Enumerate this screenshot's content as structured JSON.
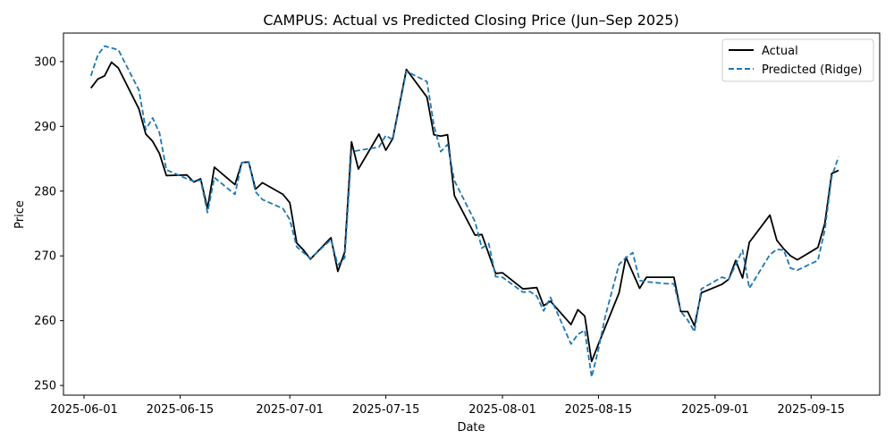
{
  "chart_data": {
    "type": "line",
    "title": "CAMPUS: Actual vs Predicted Closing Price (Jun–Sep 2025)",
    "xlabel": "Date",
    "ylabel": "Price",
    "xlim": [
      "2025-05-29",
      "2025-09-25"
    ],
    "ylim": [
      248.5,
      304.4
    ],
    "x_ticks": [
      "2025-06-01",
      "2025-06-15",
      "2025-07-01",
      "2025-07-15",
      "2025-08-01",
      "2025-08-15",
      "2025-09-01",
      "2025-09-15"
    ],
    "y_ticks": [
      250,
      260,
      270,
      280,
      290,
      300
    ],
    "legend_position": "top-right",
    "grid": false,
    "series": [
      {
        "name": "Actual",
        "color": "#000000",
        "style": "solid",
        "points": [
          [
            "2025-06-02",
            295.9
          ],
          [
            "2025-06-03",
            297.3
          ],
          [
            "2025-06-04",
            297.8
          ],
          [
            "2025-06-05",
            299.9
          ],
          [
            "2025-06-06",
            299.0
          ],
          [
            "2025-06-09",
            292.7
          ],
          [
            "2025-06-10",
            288.8
          ],
          [
            "2025-06-11",
            287.7
          ],
          [
            "2025-06-12",
            285.8
          ],
          [
            "2025-06-13",
            282.4
          ],
          [
            "2025-06-16",
            282.5
          ],
          [
            "2025-06-17",
            281.4
          ],
          [
            "2025-06-18",
            281.9
          ],
          [
            "2025-06-19",
            277.3
          ],
          [
            "2025-06-20",
            283.7
          ],
          [
            "2025-06-23",
            281.0
          ],
          [
            "2025-06-24",
            284.4
          ],
          [
            "2025-06-25",
            284.5
          ],
          [
            "2025-06-26",
            280.3
          ],
          [
            "2025-06-27",
            281.3
          ],
          [
            "2025-06-30",
            279.5
          ],
          [
            "2025-07-01",
            278.2
          ],
          [
            "2025-07-02",
            272.0
          ],
          [
            "2025-07-03",
            270.9
          ],
          [
            "2025-07-04",
            269.5
          ],
          [
            "2025-07-07",
            272.8
          ],
          [
            "2025-07-08",
            267.6
          ],
          [
            "2025-07-09",
            270.6
          ],
          [
            "2025-07-10",
            287.6
          ],
          [
            "2025-07-11",
            283.4
          ],
          [
            "2025-07-14",
            288.8
          ],
          [
            "2025-07-15",
            286.3
          ],
          [
            "2025-07-16",
            288.1
          ],
          [
            "2025-07-18",
            298.8
          ],
          [
            "2025-07-21",
            294.5
          ],
          [
            "2025-07-22",
            288.7
          ],
          [
            "2025-07-23",
            288.5
          ],
          [
            "2025-07-24",
            288.7
          ],
          [
            "2025-07-25",
            279.3
          ],
          [
            "2025-07-28",
            273.2
          ],
          [
            "2025-07-29",
            273.3
          ],
          [
            "2025-07-31",
            267.3
          ],
          [
            "2025-08-01",
            267.4
          ],
          [
            "2025-08-04",
            264.9
          ],
          [
            "2025-08-06",
            265.1
          ],
          [
            "2025-08-07",
            262.3
          ],
          [
            "2025-08-08",
            263.0
          ],
          [
            "2025-08-11",
            259.4
          ],
          [
            "2025-08-12",
            261.7
          ],
          [
            "2025-08-13",
            260.7
          ],
          [
            "2025-08-14",
            253.7
          ],
          [
            "2025-08-15",
            256.4
          ],
          [
            "2025-08-18",
            264.3
          ],
          [
            "2025-08-19",
            269.8
          ],
          [
            "2025-08-21",
            265.0
          ],
          [
            "2025-08-22",
            266.7
          ],
          [
            "2025-08-25",
            266.7
          ],
          [
            "2025-08-26",
            266.7
          ],
          [
            "2025-08-27",
            261.4
          ],
          [
            "2025-08-28",
            261.4
          ],
          [
            "2025-08-29",
            259.2
          ],
          [
            "2025-08-30",
            264.3
          ],
          [
            "2025-09-02",
            265.6
          ],
          [
            "2025-09-03",
            266.4
          ],
          [
            "2025-09-04",
            269.3
          ],
          [
            "2025-09-05",
            266.6
          ],
          [
            "2025-09-06",
            272.1
          ],
          [
            "2025-09-09",
            276.3
          ],
          [
            "2025-09-10",
            272.4
          ],
          [
            "2025-09-11",
            271.1
          ],
          [
            "2025-09-12",
            270.0
          ],
          [
            "2025-09-13",
            269.4
          ],
          [
            "2025-09-16",
            271.3
          ],
          [
            "2025-09-17",
            275.0
          ],
          [
            "2025-09-18",
            282.7
          ],
          [
            "2025-09-19",
            283.2
          ]
        ]
      },
      {
        "name": "Predicted (Ridge)",
        "color": "#1f77b4",
        "style": "dashed",
        "points": [
          [
            "2025-06-02",
            297.8
          ],
          [
            "2025-06-03",
            301.0
          ],
          [
            "2025-06-04",
            302.4
          ],
          [
            "2025-06-06",
            301.8
          ],
          [
            "2025-06-09",
            295.6
          ],
          [
            "2025-06-10",
            289.5
          ],
          [
            "2025-06-11",
            291.3
          ],
          [
            "2025-06-12",
            289.0
          ],
          [
            "2025-06-13",
            283.3
          ],
          [
            "2025-06-16",
            281.9
          ],
          [
            "2025-06-17",
            281.5
          ],
          [
            "2025-06-18",
            281.7
          ],
          [
            "2025-06-19",
            276.7
          ],
          [
            "2025-06-20",
            282.1
          ],
          [
            "2025-06-23",
            279.5
          ],
          [
            "2025-06-24",
            284.4
          ],
          [
            "2025-06-25",
            284.5
          ],
          [
            "2025-06-26",
            279.9
          ],
          [
            "2025-06-27",
            278.7
          ],
          [
            "2025-06-30",
            277.3
          ],
          [
            "2025-07-01",
            275.6
          ],
          [
            "2025-07-02",
            271.4
          ],
          [
            "2025-07-04",
            269.6
          ],
          [
            "2025-07-07",
            272.5
          ],
          [
            "2025-07-08",
            268.6
          ],
          [
            "2025-07-09",
            269.7
          ],
          [
            "2025-07-10",
            286.1
          ],
          [
            "2025-07-14",
            286.8
          ],
          [
            "2025-07-15",
            288.6
          ],
          [
            "2025-07-16",
            287.9
          ],
          [
            "2025-07-18",
            298.5
          ],
          [
            "2025-07-21",
            296.9
          ],
          [
            "2025-07-22",
            290.2
          ],
          [
            "2025-07-23",
            286.1
          ],
          [
            "2025-07-24",
            287.2
          ],
          [
            "2025-07-25",
            281.6
          ],
          [
            "2025-07-28",
            275.3
          ],
          [
            "2025-07-29",
            271.2
          ],
          [
            "2025-07-30",
            271.9
          ],
          [
            "2025-07-31",
            266.8
          ],
          [
            "2025-08-01",
            266.7
          ],
          [
            "2025-08-04",
            264.4
          ],
          [
            "2025-08-05",
            264.5
          ],
          [
            "2025-08-06",
            263.8
          ],
          [
            "2025-08-07",
            261.5
          ],
          [
            "2025-08-08",
            263.6
          ],
          [
            "2025-08-11",
            256.4
          ],
          [
            "2025-08-12",
            257.9
          ],
          [
            "2025-08-13",
            258.5
          ],
          [
            "2025-08-14",
            251.3
          ],
          [
            "2025-08-15",
            255.6
          ],
          [
            "2025-08-16",
            260.7
          ],
          [
            "2025-08-18",
            268.7
          ],
          [
            "2025-08-19",
            269.7
          ],
          [
            "2025-08-20",
            270.5
          ],
          [
            "2025-08-21",
            266.2
          ],
          [
            "2025-08-22",
            266.0
          ],
          [
            "2025-08-25",
            265.7
          ],
          [
            "2025-08-26",
            265.7
          ],
          [
            "2025-08-27",
            261.4
          ],
          [
            "2025-08-28",
            260.1
          ],
          [
            "2025-08-29",
            258.3
          ],
          [
            "2025-08-30",
            264.9
          ],
          [
            "2025-09-02",
            266.7
          ],
          [
            "2025-09-03",
            266.4
          ],
          [
            "2025-09-05",
            270.9
          ],
          [
            "2025-09-06",
            265.0
          ],
          [
            "2025-09-09",
            270.2
          ],
          [
            "2025-09-10",
            271.0
          ],
          [
            "2025-09-11",
            270.9
          ],
          [
            "2025-09-12",
            268.1
          ],
          [
            "2025-09-13",
            267.8
          ],
          [
            "2025-09-16",
            269.3
          ],
          [
            "2025-09-17",
            274.0
          ],
          [
            "2025-09-18",
            282.2
          ],
          [
            "2025-09-19",
            285.3
          ]
        ]
      }
    ]
  }
}
